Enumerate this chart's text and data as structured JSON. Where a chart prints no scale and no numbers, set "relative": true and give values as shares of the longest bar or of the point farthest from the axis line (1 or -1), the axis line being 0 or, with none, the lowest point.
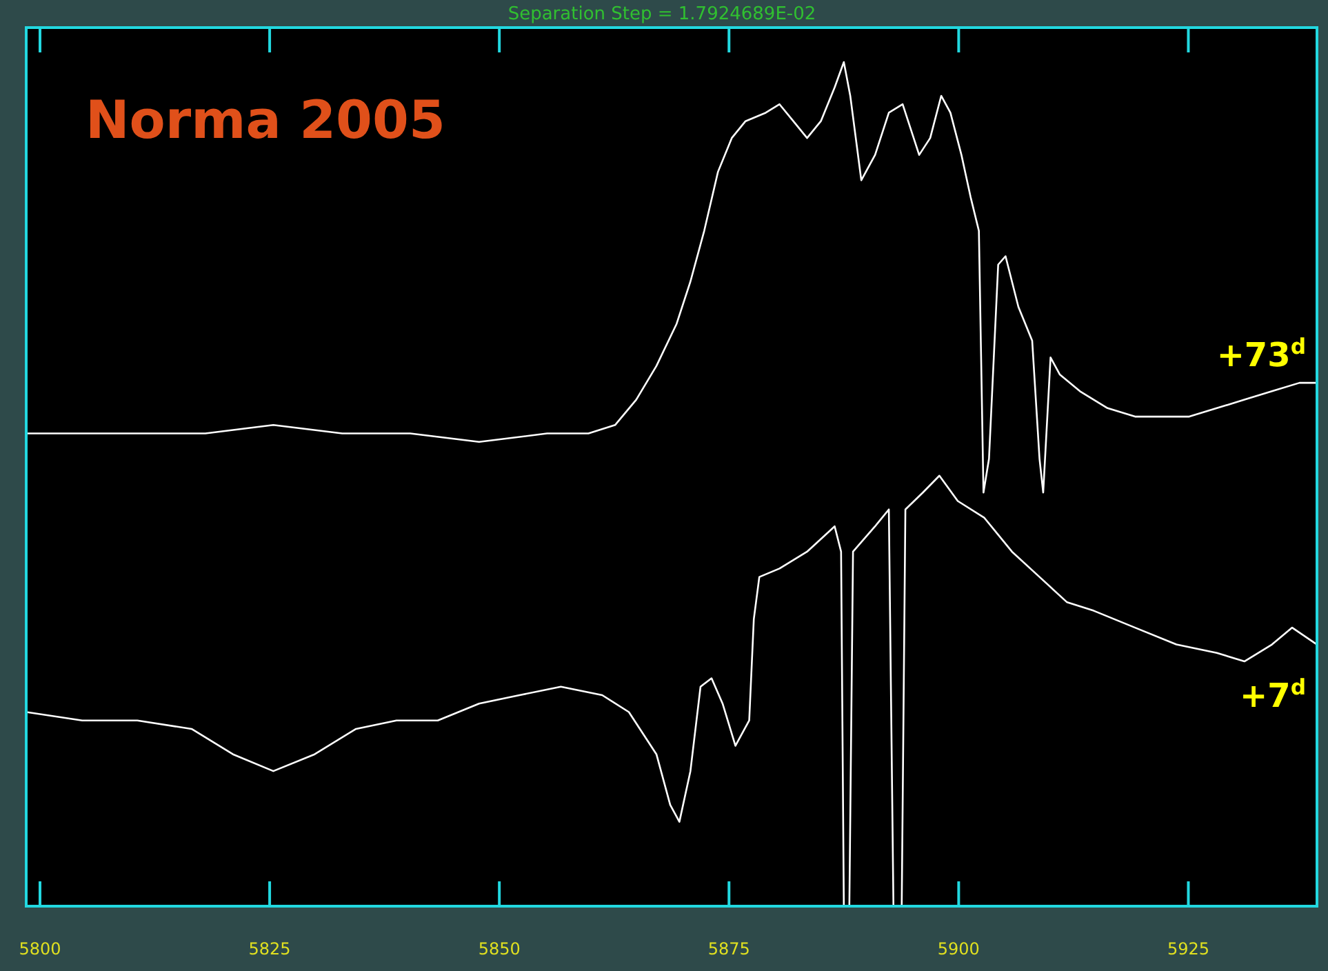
{
  "chart_data": {
    "type": "line",
    "title": "Norma 2005",
    "relative": true,
    "annotations": [
      "Separation Step = 1.7924689E-02"
    ],
    "xlim": [
      5798.5,
      5939
    ],
    "xticks": [
      5800,
      5825,
      5850,
      5875,
      5900,
      5925
    ],
    "series": [
      {
        "name": "+73$^{d}$",
        "color": "#ffffff",
        "x": [
          5798.5,
          5804.6,
          5810.6,
          5818.0,
          5825.4,
          5832.9,
          5840.3,
          5847.8,
          5855.2,
          5859.7,
          5862.6,
          5864.9,
          5867.1,
          5869.3,
          5870.8,
          5872.3,
          5873.8,
          5875.3,
          5876.8,
          5879.0,
          5880.5,
          5882.0,
          5883.5,
          5885.0,
          5886.5,
          5887.5,
          5888.2,
          5889.4,
          5890.9,
          5892.4,
          5893.9,
          5895.7,
          5896.9,
          5898.1,
          5899.1,
          5900.3,
          5901.3,
          5902.2,
          5902.7,
          5903.3,
          5904.3,
          5905.1,
          5906.5,
          5908.0,
          5908.8,
          5909.2,
          5910.0,
          5911.0,
          5913.2,
          5916.2,
          5919.2,
          5922.2,
          5925.1,
          5928.1,
          5931.1,
          5934.1,
          5937.1,
          5939.0
        ],
        "values": [
          0.56,
          0.56,
          0.56,
          0.56,
          0.57,
          0.56,
          0.56,
          0.55,
          0.56,
          0.56,
          0.57,
          0.6,
          0.64,
          0.69,
          0.74,
          0.8,
          0.87,
          0.91,
          0.93,
          0.94,
          0.95,
          0.93,
          0.91,
          0.93,
          0.97,
          1.0,
          0.96,
          0.86,
          0.89,
          0.94,
          0.95,
          0.89,
          0.91,
          0.96,
          0.94,
          0.89,
          0.84,
          0.8,
          0.49,
          0.53,
          0.76,
          0.77,
          0.71,
          0.67,
          0.53,
          0.49,
          0.65,
          0.63,
          0.61,
          0.59,
          0.58,
          0.58,
          0.58,
          0.59,
          0.6,
          0.61,
          0.62,
          0.62
        ]
      },
      {
        "name": "+7$^{d}$",
        "color": "#ffffff",
        "x": [
          5798.5,
          5804.6,
          5810.6,
          5816.5,
          5821.0,
          5825.4,
          5829.9,
          5834.4,
          5838.8,
          5843.3,
          5847.8,
          5852.2,
          5856.7,
          5861.2,
          5864.1,
          5867.1,
          5868.6,
          5869.6,
          5870.8,
          5871.9,
          5873.1,
          5874.3,
          5875.7,
          5877.2,
          5877.7,
          5878.3,
          5880.5,
          5883.5,
          5886.5,
          5887.2,
          5887.5,
          5888.1,
          5888.5,
          5890.9,
          5892.4,
          5892.9,
          5893.8,
          5894.2,
          5896.1,
          5897.9,
          5899.9,
          5902.8,
          5905.8,
          5908.8,
          5911.8,
          5914.7,
          5919.2,
          5923.7,
          5928.1,
          5931.1,
          5934.1,
          5936.3,
          5939.0
        ],
        "values": [
          0.23,
          0.22,
          0.22,
          0.21,
          0.18,
          0.16,
          0.18,
          0.21,
          0.22,
          0.22,
          0.24,
          0.25,
          0.26,
          0.25,
          0.23,
          0.18,
          0.12,
          0.1,
          0.16,
          0.26,
          0.27,
          0.24,
          0.19,
          0.22,
          0.34,
          0.39,
          0.4,
          0.42,
          0.45,
          0.42,
          0,
          0,
          0.42,
          0.45,
          0.47,
          0,
          0,
          0.47,
          0.49,
          0.51,
          0.48,
          0.46,
          0.42,
          0.39,
          0.36,
          0.35,
          0.33,
          0.31,
          0.3,
          0.29,
          0.31,
          0.33,
          0.31
        ]
      }
    ]
  }
}
